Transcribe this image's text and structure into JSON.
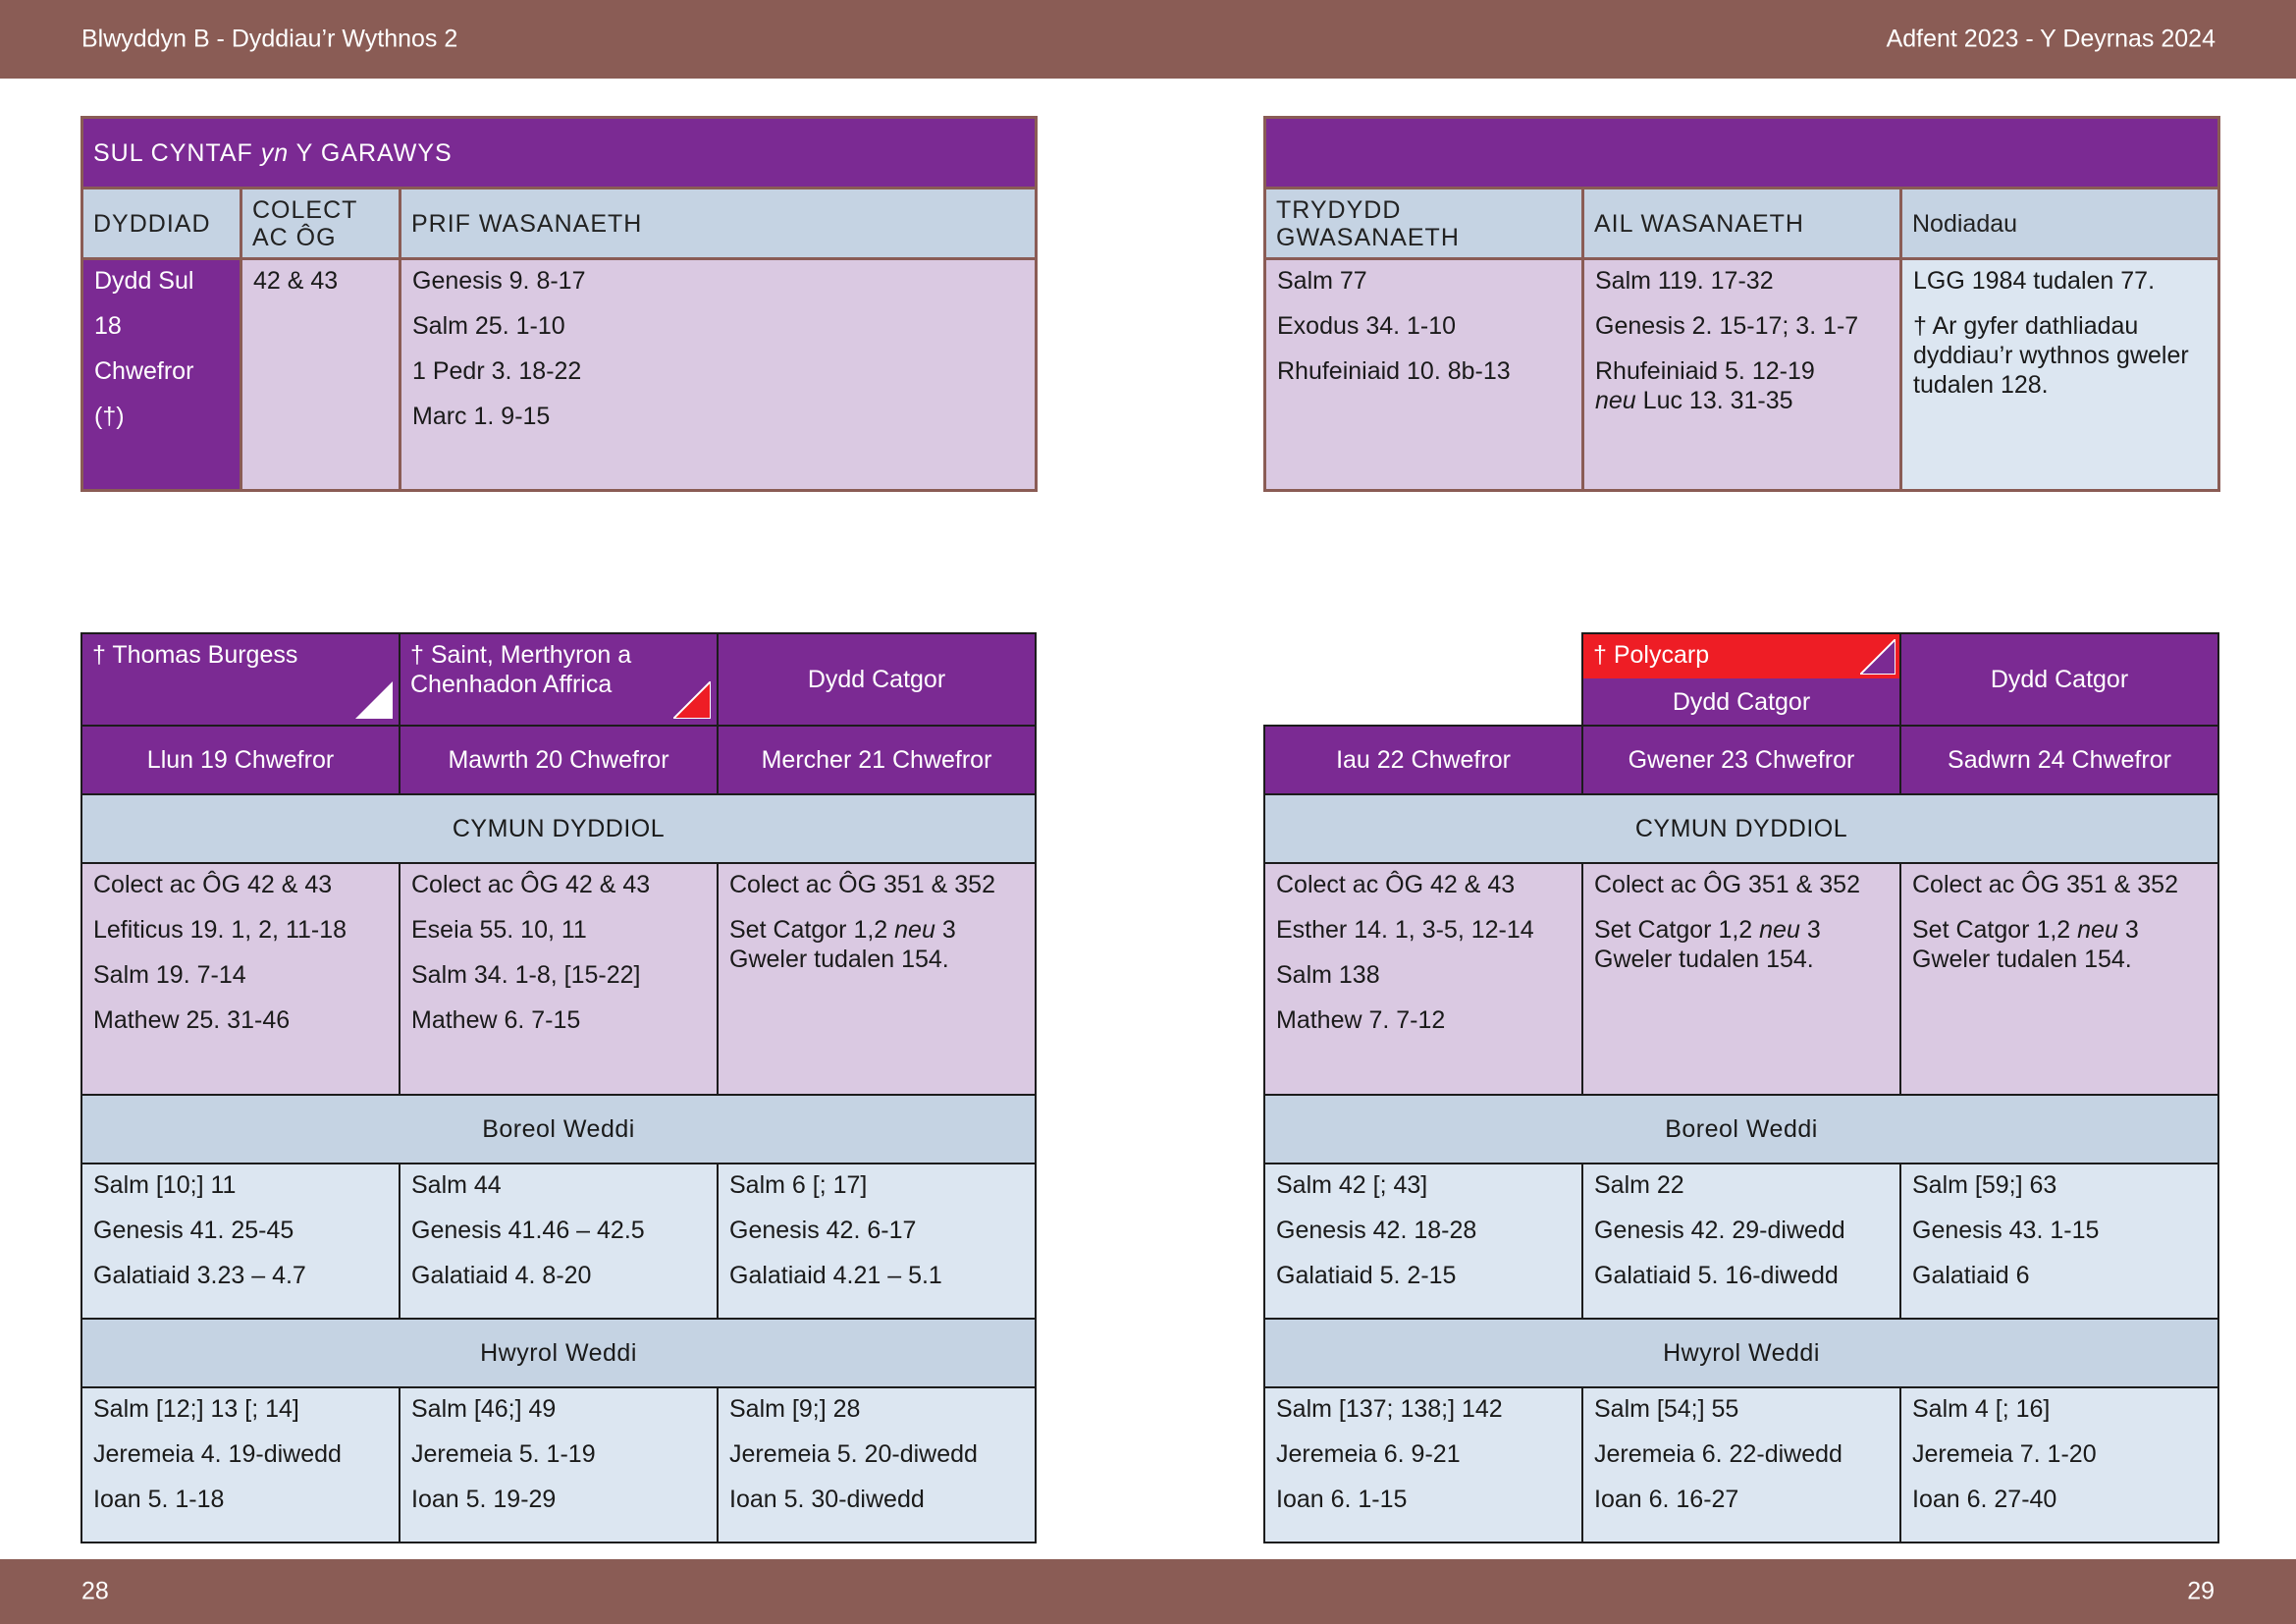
{
  "header": {
    "left": "Blwyddyn  B - Dyddiau’r Wythnos 2",
    "right": "Adfent  2023 - Y Deyrnas 2024"
  },
  "footer": {
    "page_left": "28",
    "page_right": "29"
  },
  "sunday": {
    "title_pre": "SUL CYNTAF ",
    "title_em": "yn",
    "title_post": " Y GARAWYS",
    "headers": {
      "date": "DYDDIAD",
      "collect": "COLECT AC ÔG",
      "principal": "PRIF WASANAETH",
      "third": "TRYDYDD GWASANAETH",
      "second": "AIL WASANAETH",
      "notes": "Nodiadau"
    },
    "date_lines": [
      "Dydd Sul",
      "18",
      "Chwefror",
      "(†)"
    ],
    "collect": "42 & 43",
    "principal": [
      "Genesis 9. 8-17",
      "Salm 25. 1-10",
      "1 Pedr 3. 18-22",
      "Marc 1. 9-15"
    ],
    "third": [
      "Salm 77",
      "Exodus 34. 1-10",
      "Rhufeiniaid 10. 8b-13"
    ],
    "second": [
      "Salm 119. 17-32",
      "Genesis 2. 15-17; 3. 1-7",
      "Rhufeiniaid 5. 12-19"
    ],
    "second_alt_em": "neu",
    "second_alt": " Luc 13. 31-35",
    "notes": [
      "LGG 1984 tudalen 77.",
      "† Ar gyfer dathliadau dyddiau’r wythnos gweler tudalen 128."
    ]
  },
  "week": {
    "sections": {
      "communion": "CYMUN DYDDIOL",
      "morning": "Boreol Weddi",
      "evening": "Hwyrol Weddi"
    },
    "days": [
      {
        "saint": "† Thomas Burgess",
        "observance": "",
        "day": "Llun 19 Chwefror",
        "communion": [
          "Colect ac ÔG 42 & 43",
          "Lefiticus 19. 1, 2, 11-18",
          "Salm 19. 7-14",
          "Mathew 25. 31-46"
        ],
        "morning": [
          "Salm [10;] 11",
          "Genesis 41. 25-45",
          "Galatiaid 3.23 – 4.7"
        ],
        "evening": [
          "Salm [12;] 13 [; 14]",
          "Jeremeia 4. 19-diwedd",
          "Ioan 5. 1-18"
        ]
      },
      {
        "saint": "† Saint, Merthyron a Chenhadon Affrica",
        "observance": "",
        "day": "Mawrth 20 Chwefror",
        "communion": [
          "Colect ac ÔG 42 & 43",
          "Eseia 55. 10, 11",
          "Salm 34. 1-8, [15-22]",
          "Mathew 6. 7-15"
        ],
        "morning": [
          "Salm 44",
          "Genesis 41.46 – 42.5",
          "Galatiaid 4. 8-20"
        ],
        "evening": [
          "Salm [46;] 49",
          "Jeremeia 5. 1-19",
          "Ioan 5. 19-29"
        ]
      },
      {
        "saint": "",
        "observance": "Dydd Catgor",
        "day": "Mercher 21 Chwefror",
        "communion": [
          "Colect ac ÔG 351 & 352"
        ],
        "morning": [
          "Salm 6 [; 17]",
          "Genesis 42. 6-17",
          "Galatiaid 4.21 – 5.1"
        ],
        "evening": [
          "Salm [9;] 28",
          "Jeremeia 5. 20-diwedd",
          "Ioan 5. 30-diwedd"
        ]
      },
      {
        "saint": "",
        "observance": "",
        "day": "Iau 22 Chwefror",
        "communion": [
          "Colect ac ÔG 42 & 43",
          "Esther 14. 1, 3-5, 12-14",
          "Salm 138",
          "Mathew 7. 7-12"
        ],
        "morning": [
          "Salm 42 [; 43]",
          "Genesis 42. 18-28",
          "Galatiaid 5. 2-15"
        ],
        "evening": [
          "Salm [137; 138;] 142",
          "Jeremeia 6. 9-21",
          "Ioan 6. 1-15"
        ]
      },
      {
        "saint": "† Polycarp",
        "observance": "Dydd Catgor",
        "day": "Gwener 23 Chwefror",
        "communion": [
          "Colect ac ÔG 351 & 352"
        ],
        "morning": [
          "Salm 22",
          "Genesis 42. 29-diwedd",
          "Galatiaid 5. 16-diwedd"
        ],
        "evening": [
          "Salm [54;] 55",
          "Jeremeia 6. 22-diwedd",
          "Ioan 6. 16-27"
        ]
      },
      {
        "saint": "",
        "observance": "Dydd Catgor",
        "day": "Sadwrn 24 Chwefror",
        "communion": [
          "Colect ac ÔG 351 & 352"
        ],
        "morning": [
          "Salm [59;] 63",
          "Genesis 43. 1-15",
          "Galatiaid 6"
        ],
        "evening": [
          "Salm 4 [; 16]",
          "Jeremeia 7. 1-20",
          "Ioan 6. 27-40"
        ]
      }
    ],
    "ember_set_pre": "Set Catgor 1,2 ",
    "ember_set_em": "neu",
    "ember_set_post": " 3",
    "ember_see": "Gweler tudalen 154."
  },
  "colors": {
    "bar": "#8a5c55",
    "purple": "#7b2a93",
    "header_blue": "#c5d3e3",
    "lavender": "#dac9e2",
    "light_blue": "#dce6f1",
    "red": "#ee1d25"
  }
}
